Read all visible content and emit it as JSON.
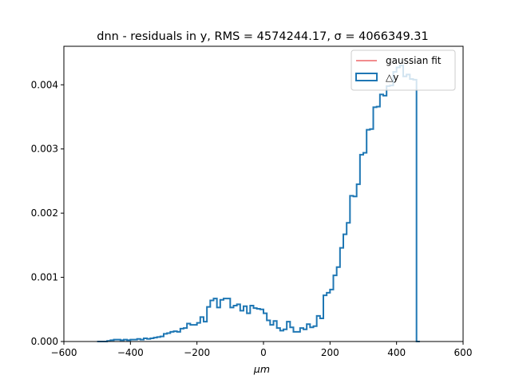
{
  "chart_data": {
    "type": "histogram",
    "title": "dnn - residuals in y, RMS = 4574244.17, σ = 4066349.31",
    "xlabel": "μm",
    "ylabel": "",
    "xlim": [
      -600,
      600
    ],
    "ylim": [
      0,
      0.0046
    ],
    "xticks": [
      -600,
      -400,
      -200,
      0,
      200,
      400,
      600
    ],
    "xtick_labels": [
      "−600",
      "−400",
      "−200",
      "0",
      "200",
      "400",
      "600"
    ],
    "yticks": [
      0,
      0.001,
      0.002,
      0.003,
      0.004
    ],
    "ytick_labels": [
      "0.000",
      "0.001",
      "0.002",
      "0.003",
      "0.004"
    ],
    "grid": false,
    "legend_position": "top-right",
    "series": [
      {
        "name": "gaussian fit",
        "kind": "line",
        "color": "#e41a1c",
        "x": [
          -550,
          550
        ],
        "y": [
          0,
          0
        ]
      },
      {
        "name": "△y",
        "kind": "step-histogram",
        "color": "#1f77b4",
        "bin_start": -500,
        "bin_width": 10,
        "values": [
          0,
          0,
          0,
          1e-05,
          2e-05,
          3e-05,
          3e-05,
          2e-05,
          3e-05,
          2e-05,
          3e-05,
          3e-05,
          4e-05,
          3e-05,
          5e-05,
          4e-05,
          5e-05,
          6e-05,
          7e-05,
          8e-05,
          0.00012,
          0.00013,
          0.00015,
          0.00016,
          0.00015,
          0.0002,
          0.00021,
          0.00028,
          0.00026,
          0.00026,
          0.00029,
          0.00038,
          0.00031,
          0.00054,
          0.00064,
          0.00067,
          0.00053,
          0.00065,
          0.00067,
          0.00067,
          0.00053,
          0.00056,
          0.00058,
          0.00048,
          0.00055,
          0.00044,
          0.00056,
          0.00052,
          0.00051,
          0.0005,
          0.00044,
          0.00033,
          0.00026,
          0.00032,
          0.00021,
          0.00017,
          0.00019,
          0.00031,
          0.00022,
          0.00015,
          0.00015,
          0.00021,
          0.00019,
          0.00027,
          0.00022,
          0.00024,
          0.0004,
          0.00036,
          0.00072,
          0.00076,
          0.00081,
          0.00103,
          0.00116,
          0.00146,
          0.00167,
          0.00185,
          0.00227,
          0.00226,
          0.00245,
          0.00291,
          0.00294,
          0.0033,
          0.00331,
          0.00365,
          0.00366,
          0.00385,
          0.00383,
          0.00398,
          0.00399,
          0.0042,
          0.00427,
          0.0043,
          0.00413,
          0.00416,
          0.00409,
          0.00408,
          0
        ]
      }
    ]
  }
}
